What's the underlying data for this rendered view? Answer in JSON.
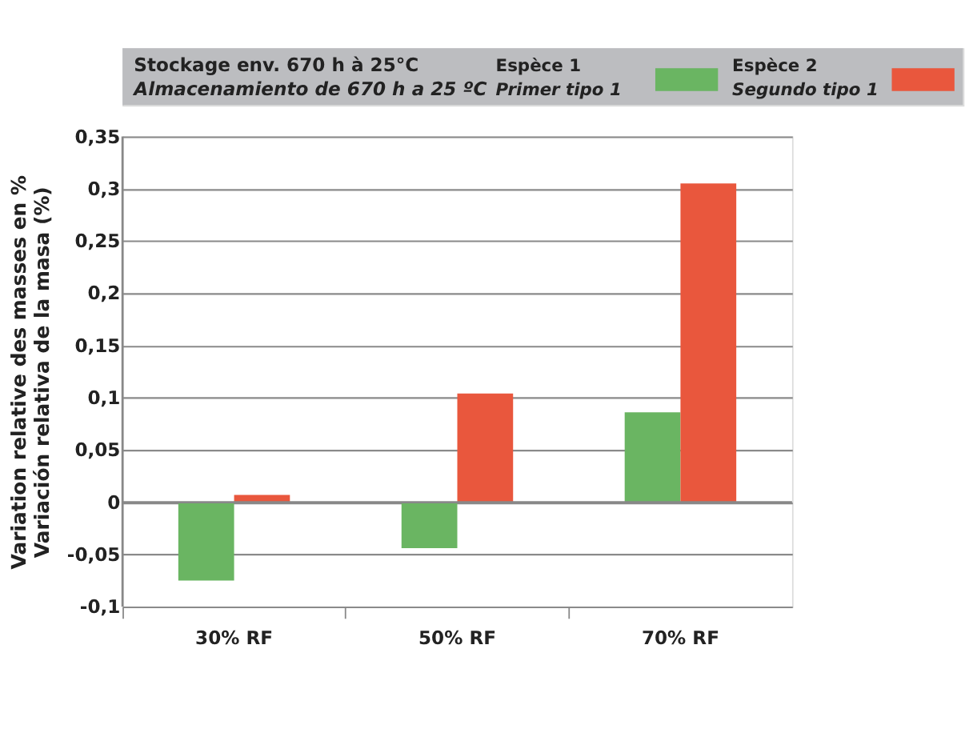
{
  "chart_data": {
    "type": "bar",
    "title": "Stockage env. 670 h à 25°C",
    "subtitle": "Almacenamiento de 670 h a 25 ºC",
    "ylabel": "Variation relative des masses en %\nVariación relativa de la masa (%)",
    "categories": [
      "30% RF",
      "50% RF",
      "70% RF"
    ],
    "series": [
      {
        "name": "Espèce 1\nPrimer tipo 1",
        "color": "#6ab562",
        "values": [
          -0.075,
          -0.044,
          0.086
        ]
      },
      {
        "name": "Espèce 2\nSegundo tipo 1",
        "color": "#e9573d",
        "values": [
          0.007,
          0.104,
          0.305
        ]
      }
    ],
    "ylim": [
      -0.1,
      0.35
    ],
    "yticks": [
      {
        "value": -0.1,
        "label": "-0,1"
      },
      {
        "value": -0.05,
        "label": "-0,05"
      },
      0,
      {
        "value": 0.05,
        "label": "0,05"
      },
      {
        "value": 0.1,
        "label": "0,1"
      },
      {
        "value": 0.15,
        "label": "0,15"
      },
      {
        "value": 0.2,
        "label": "0,2"
      },
      {
        "value": 0.25,
        "label": "0,25"
      },
      {
        "value": 0.3,
        "label": "0,3"
      },
      {
        "value": 0.35,
        "label": "0,35"
      }
    ],
    "grid": "y",
    "legend": "top"
  }
}
